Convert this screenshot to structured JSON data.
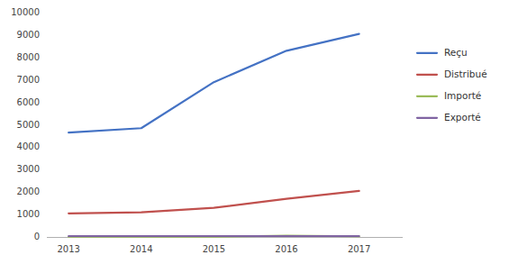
{
  "chart_data": {
    "type": "line",
    "x": [
      2013,
      2014,
      2015,
      2016,
      2017
    ],
    "series": [
      {
        "name": "Reçu",
        "color": "#4472C4",
        "values": [
          4650,
          4850,
          6900,
          8300,
          9050
        ]
      },
      {
        "name": "Distribué",
        "color": "#C0504D",
        "values": [
          1050,
          1100,
          1300,
          1700,
          2050
        ]
      },
      {
        "name": "Importé",
        "color": "#9BBB59",
        "values": [
          10,
          10,
          10,
          60,
          30
        ]
      },
      {
        "name": "Exporté",
        "color": "#8064A2",
        "values": [
          40,
          40,
          40,
          40,
          40
        ]
      }
    ],
    "xlim": [
      2012.7,
      2017.6
    ],
    "xticks": [
      2013,
      2014,
      2015,
      2016,
      2017
    ],
    "ylim": [
      0,
      10000
    ],
    "yticks": [
      0,
      1000,
      2000,
      3000,
      4000,
      5000,
      6000,
      7000,
      8000,
      9000,
      10000
    ],
    "grid": false,
    "legend": "right"
  }
}
